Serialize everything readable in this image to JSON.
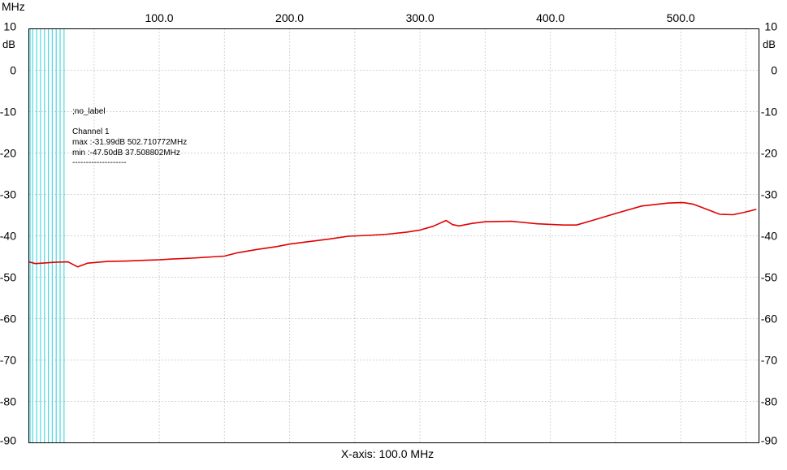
{
  "chart_data": {
    "type": "line",
    "x_unit_label": "MHz",
    "y_unit_label": "dB",
    "xlabel": "X-axis: 100.0 MHz",
    "xlim": [
      0,
      560
    ],
    "ylim": [
      -90,
      10
    ],
    "x_ticks": [
      {
        "value": 100,
        "label": "100.0"
      },
      {
        "value": 200,
        "label": "200.0"
      },
      {
        "value": 300,
        "label": "300.0"
      },
      {
        "value": 400,
        "label": "400.0"
      },
      {
        "value": 500,
        "label": "500.0"
      }
    ],
    "y_ticks": [
      {
        "value": 10,
        "label": "10"
      },
      {
        "value": 0,
        "label": "0"
      },
      {
        "value": -10,
        "label": "-10"
      },
      {
        "value": -20,
        "label": "-20"
      },
      {
        "value": -30,
        "label": "-30"
      },
      {
        "value": -40,
        "label": "-40"
      },
      {
        "value": -50,
        "label": "-50"
      },
      {
        "value": -60,
        "label": "-60"
      },
      {
        "value": -70,
        "label": "-70"
      },
      {
        "value": -80,
        "label": "-80"
      },
      {
        "value": -90,
        "label": "-90"
      }
    ],
    "grid": true,
    "marker_lines": {
      "color": "#4fd8e0",
      "x": [
        1,
        3,
        6,
        9,
        12,
        15,
        18,
        21,
        24,
        27
      ]
    },
    "series": [
      {
        "color": "#e00000",
        "x": [
          0,
          5,
          10,
          20,
          30,
          37.5,
          45,
          60,
          75,
          90,
          100,
          110,
          125,
          140,
          150,
          160,
          175,
          190,
          200,
          215,
          230,
          245,
          260,
          275,
          290,
          300,
          310,
          315,
          320,
          325,
          330,
          340,
          350,
          370,
          390,
          410,
          420,
          430,
          450,
          470,
          490,
          500,
          502.7,
          510,
          520,
          530,
          540,
          548,
          558
        ],
        "y": [
          -46.3,
          -46.7,
          -46.6,
          -46.4,
          -46.3,
          -47.5,
          -46.6,
          -46.2,
          -46.1,
          -45.9,
          -45.8,
          -45.6,
          -45.4,
          -45.1,
          -44.9,
          -44.1,
          -43.3,
          -42.6,
          -42.0,
          -41.4,
          -40.8,
          -40.1,
          -39.9,
          -39.6,
          -39.1,
          -38.6,
          -37.7,
          -37.0,
          -36.3,
          -37.3,
          -37.6,
          -37.0,
          -36.6,
          -36.5,
          -37.1,
          -37.4,
          -37.4,
          -36.5,
          -34.6,
          -32.8,
          -32.1,
          -31.99,
          -32.0,
          -32.4,
          -33.6,
          -34.8,
          -34.9,
          -34.4,
          -33.6
        ]
      }
    ],
    "annotation": {
      "label": ";no_label",
      "channel": "Channel 1",
      "max_line": "max :-31.99dB 502.710772MHz",
      "min_line": "min :-47.50dB 37.508802MHz",
      "separator": "--------------------"
    }
  }
}
